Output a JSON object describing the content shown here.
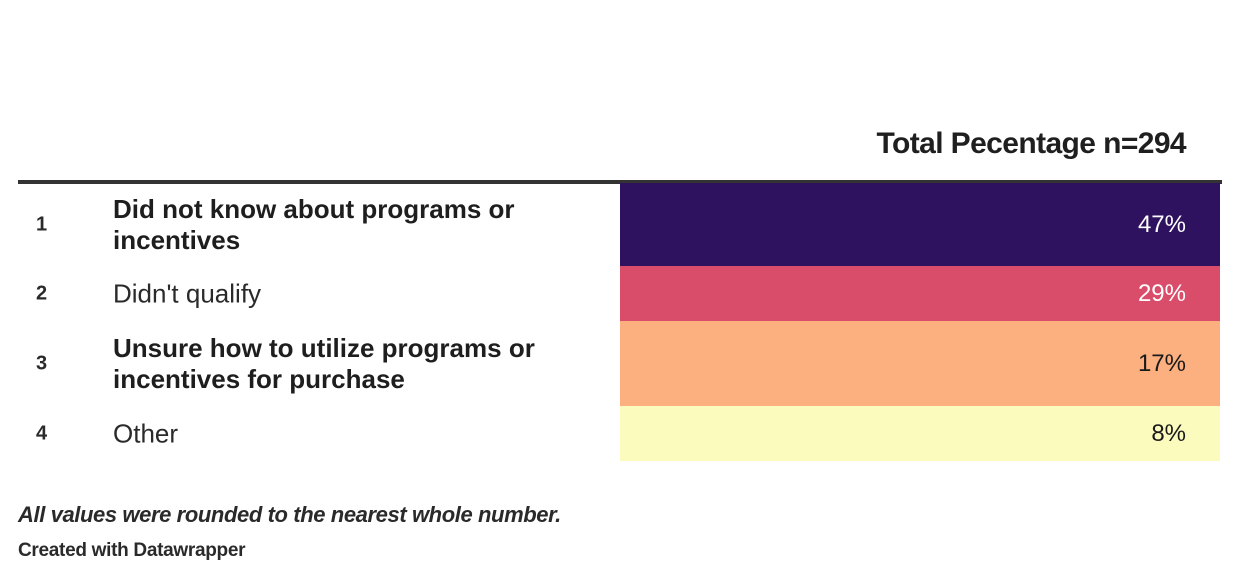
{
  "column_title": "Total Pecentage n=294",
  "note": "All values were rounded to the nearest whole number.",
  "credit": "Created with Datawrapper",
  "colors": {
    "row1": "#2e1260",
    "row2": "#d94d6b",
    "row3": "#fcb07f",
    "row4": "#fbfbbd"
  },
  "chart_data": {
    "type": "table",
    "columns": [
      "Total Pecentage n=294"
    ],
    "rows": [
      {
        "rank": "1",
        "label": "Did not know about programs or incentives",
        "value": 47,
        "value_label": "47%",
        "color": "#2e1260",
        "text_color": "#ffffff",
        "label_bold": true
      },
      {
        "rank": "2",
        "label": "Didn't qualify",
        "value": 29,
        "value_label": "29%",
        "color": "#d94d6b",
        "text_color": "#ffffff",
        "label_bold": false
      },
      {
        "rank": "3",
        "label": "Unsure how to utilize programs or incentives for purchase",
        "value": 17,
        "value_label": "17%",
        "color": "#fcb07f",
        "text_color": "#1a1a1a",
        "label_bold": true
      },
      {
        "rank": "4",
        "label": "Other",
        "value": 8,
        "value_label": "8%",
        "color": "#fbfbbd",
        "text_color": "#1a1a1a",
        "label_bold": false
      }
    ]
  }
}
